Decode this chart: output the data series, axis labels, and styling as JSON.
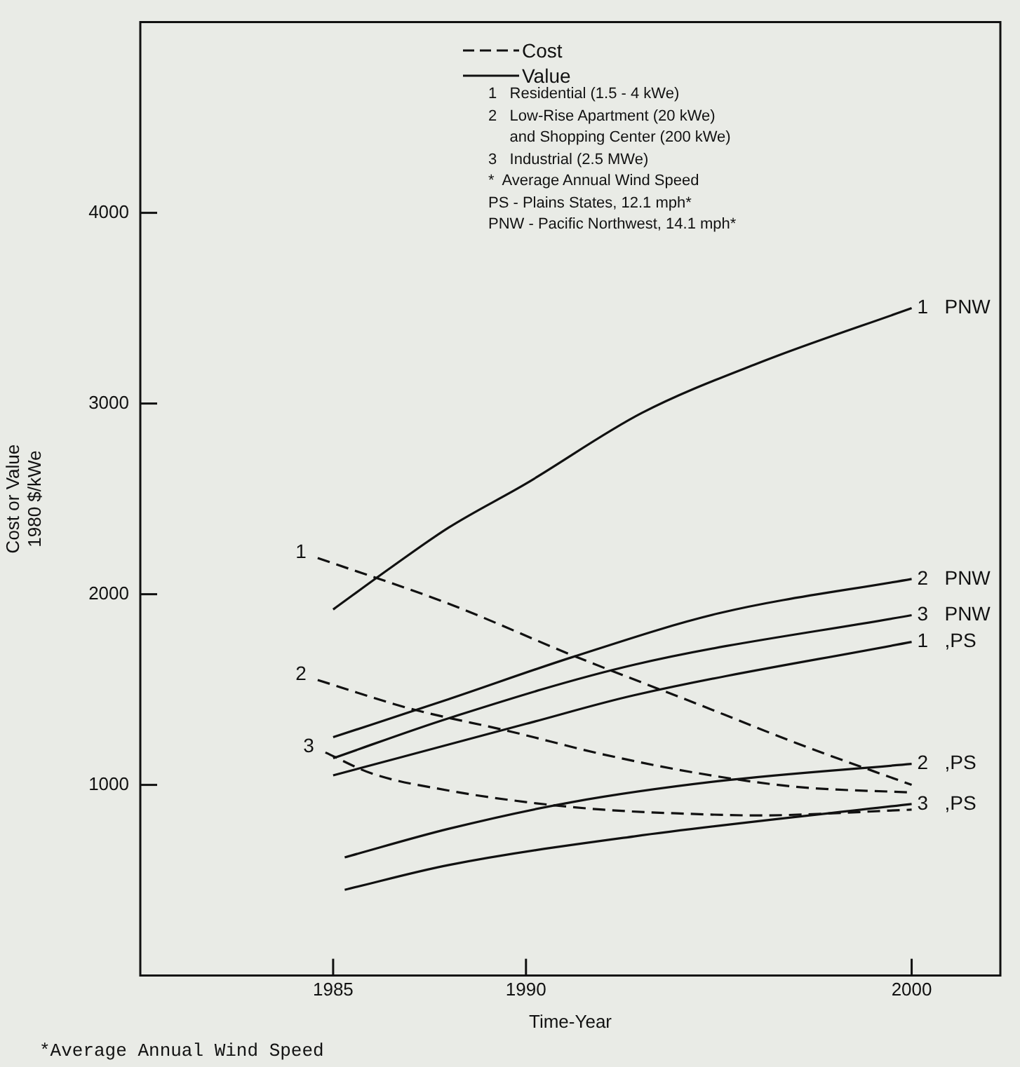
{
  "chart_data": {
    "type": "line",
    "xlabel": "Time-Year",
    "ylabel": "Cost or Value\n1980 $/kWe",
    "xlim": [
      1980,
      2002.3
    ],
    "xticks": [
      1985,
      1990,
      2000
    ],
    "ylim": [
      0,
      5000
    ],
    "yticks": [
      1000,
      2000,
      3000,
      4000
    ],
    "grid": false,
    "legend": false,
    "marker": "none",
    "annotations": [
      "Cost",
      "Value",
      "1   Residential (1.5 - 4 kWe)\n2   Low-Rise Apartment (20 kWe)\n     and Shopping Center (200 kWe)\n3   Industrial (2.5 MWe)\n*  Average Annual Wind Speed\nPS - Plains States, 12.1 mph*\nPNW - Pacific Northwest, 14.1 mph*",
      "*Average Annual Wind Speed"
    ],
    "series": [
      {
        "name": "1",
        "color": "#111111",
        "line_style": "dashed",
        "x": [
          1984.6,
          1988,
          1991.2,
          1994.5,
          1997,
          2000
        ],
        "values": [
          2190,
          1950,
          1680,
          1420,
          1220,
          1000
        ]
      },
      {
        "name": "2",
        "color": "#111111",
        "line_style": "dashed",
        "x": [
          1984.6,
          1987,
          1989.6,
          1992,
          1994.5,
          1997,
          2000
        ],
        "values": [
          1550,
          1400,
          1280,
          1160,
          1060,
          990,
          960
        ]
      },
      {
        "name": "3",
        "color": "#111111",
        "line_style": "dashed",
        "x": [
          1984.8,
          1986,
          1988,
          1990,
          1992,
          1994,
          1996,
          2000
        ],
        "values": [
          1170,
          1060,
          970,
          910,
          870,
          850,
          840,
          870
        ]
      },
      {
        "name": "1 PNW",
        "color": "#111111",
        "line_style": "solid",
        "x": [
          1985,
          1986.5,
          1988,
          1990,
          1993,
          1996,
          2000
        ],
        "values": [
          1920,
          2140,
          2350,
          2580,
          2950,
          3210,
          3500
        ]
      },
      {
        "name": "2 PNW",
        "color": "#111111",
        "line_style": "solid",
        "x": [
          1985,
          1988,
          1991.2,
          1995,
          2000
        ],
        "values": [
          1250,
          1450,
          1670,
          1900,
          2080
        ]
      },
      {
        "name": "3 PNW",
        "color": "#111111",
        "line_style": "solid",
        "x": [
          1985,
          1988,
          1992.8,
          2000
        ],
        "values": [
          1140,
          1350,
          1630,
          1890
        ]
      },
      {
        "name": "1 ,PS",
        "color": "#111111",
        "line_style": "solid",
        "x": [
          1985,
          1990,
          1992.8,
          2000
        ],
        "values": [
          1050,
          1320,
          1470,
          1750
        ]
      },
      {
        "name": "2 ,PS",
        "color": "#111111",
        "line_style": "solid",
        "x": [
          1985.3,
          1988,
          1991.2,
          1995,
          2000
        ],
        "values": [
          620,
          770,
          910,
          1020,
          1110
        ]
      },
      {
        "name": "3 ,PS",
        "color": "#111111",
        "line_style": "solid",
        "x": [
          1985.3,
          1988,
          1992.8,
          2000
        ],
        "values": [
          450,
          580,
          730,
          900
        ]
      }
    ]
  }
}
